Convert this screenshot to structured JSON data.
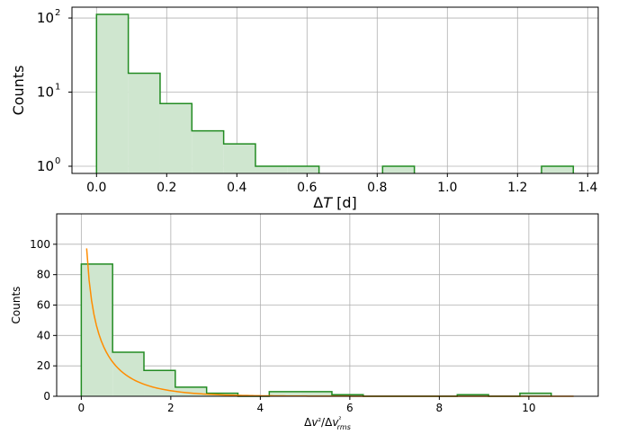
{
  "chart_data": [
    {
      "type": "histogram",
      "xlabel": "ΔT [d]",
      "ylabel": "Counts",
      "yscale": "log",
      "grid": true,
      "xlim": [
        -0.07,
        1.43
      ],
      "ylim": [
        0.8,
        140
      ],
      "bin_width": 0.0906,
      "bins": [
        {
          "x0": 0.0,
          "x1": 0.0906,
          "count": 112
        },
        {
          "x0": 0.0906,
          "x1": 0.1812,
          "count": 18
        },
        {
          "x0": 0.1812,
          "x1": 0.2718,
          "count": 7
        },
        {
          "x0": 0.2718,
          "x1": 0.3624,
          "count": 3
        },
        {
          "x0": 0.3624,
          "x1": 0.453,
          "count": 2
        },
        {
          "x0": 0.453,
          "x1": 0.5436,
          "count": 1
        },
        {
          "x0": 0.5436,
          "x1": 0.6342,
          "count": 1
        },
        {
          "x0": 0.8154,
          "x1": 0.906,
          "count": 1
        },
        {
          "x0": 1.2684,
          "x1": 1.359,
          "count": 1
        }
      ],
      "xticks": [
        "0.0",
        "0.2",
        "0.4",
        "0.6",
        "0.8",
        "1.0",
        "1.2",
        "1.4"
      ],
      "xtick_values": [
        0.0,
        0.2,
        0.4,
        0.6,
        0.8,
        1.0,
        1.2,
        1.4
      ],
      "ytick_values": [
        1,
        10,
        100
      ],
      "yticks": [
        {
          "base": "10",
          "exp": "0"
        },
        {
          "base": "10",
          "exp": "1"
        },
        {
          "base": "10",
          "exp": "2"
        }
      ],
      "fill_color": "#cfe6cf",
      "edge_color": "#228b22"
    },
    {
      "type": "histogram",
      "xlabel": "Δv²/Δv²rms",
      "ylabel": "Counts",
      "yscale": "linear",
      "grid": true,
      "xlim": [
        -0.55,
        11.55
      ],
      "ylim": [
        0,
        120
      ],
      "bin_width": 0.7,
      "bins": [
        {
          "x0": 0.0,
          "x1": 0.7,
          "count": 87
        },
        {
          "x0": 0.7,
          "x1": 1.4,
          "count": 29
        },
        {
          "x0": 1.4,
          "x1": 2.1,
          "count": 17
        },
        {
          "x0": 2.1,
          "x1": 2.8,
          "count": 6
        },
        {
          "x0": 2.8,
          "x1": 3.5,
          "count": 2
        },
        {
          "x0": 3.5,
          "x1": 4.2,
          "count": 0
        },
        {
          "x0": 4.2,
          "x1": 4.9,
          "count": 3
        },
        {
          "x0": 4.9,
          "x1": 5.6,
          "count": 3
        },
        {
          "x0": 5.6,
          "x1": 6.3,
          "count": 1
        },
        {
          "x0": 6.3,
          "x1": 7.0,
          "count": 0
        },
        {
          "x0": 7.0,
          "x1": 7.7,
          "count": 0
        },
        {
          "x0": 7.7,
          "x1": 8.4,
          "count": 0
        },
        {
          "x0": 8.4,
          "x1": 9.1,
          "count": 1
        },
        {
          "x0": 9.1,
          "x1": 9.8,
          "count": 0
        },
        {
          "x0": 9.8,
          "x1": 10.5,
          "count": 2
        }
      ],
      "xticks": [
        "0",
        "2",
        "4",
        "6",
        "8",
        "10"
      ],
      "xtick_values": [
        0,
        2,
        4,
        6,
        8,
        10
      ],
      "yticks": [
        "0",
        "20",
        "40",
        "60",
        "80",
        "100"
      ],
      "ytick_values": [
        0,
        20,
        40,
        60,
        80,
        100
      ],
      "fit_curve": {
        "formula": "A*exp(-x)/sqrt(x)",
        "A": 38,
        "x_range": [
          0.12,
          11.0
        ],
        "color": "#ff8c00"
      },
      "fill_color": "#cfe6cf",
      "edge_color": "#228b22"
    }
  ]
}
